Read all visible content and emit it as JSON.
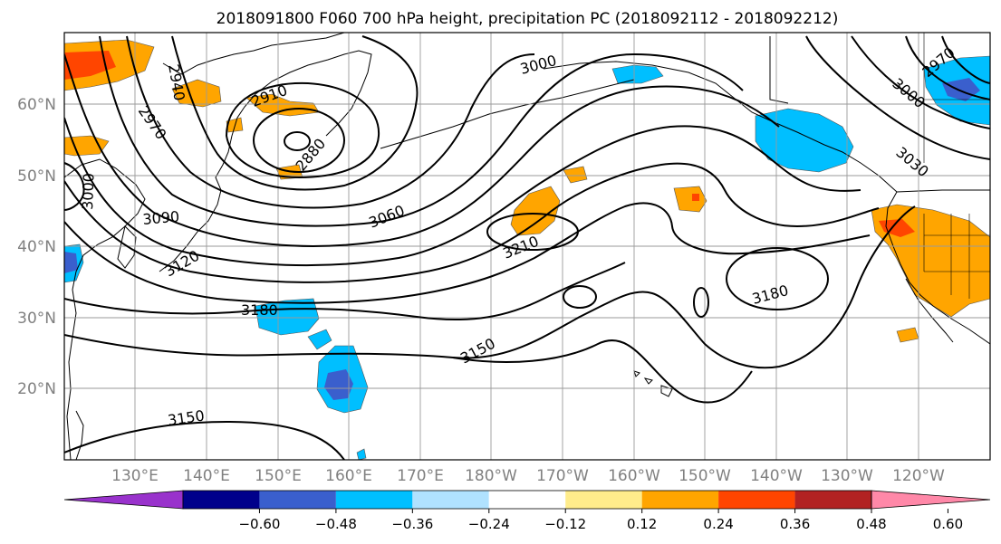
{
  "title": "2018091800 F060 700 hPa height, precipitation PC (2018092112 - 2018092212)",
  "lat_labels": [
    "60°N",
    "50°N",
    "40°N",
    "30°N",
    "20°N"
  ],
  "lon_labels": [
    "130°E",
    "140°E",
    "150°E",
    "160°E",
    "170°E",
    "180°W",
    "170°W",
    "160°W",
    "150°W",
    "140°W",
    "130°W",
    "120°W"
  ],
  "contour_labels": [
    "2940",
    "2970",
    "2910",
    "2880",
    "3000",
    "2970",
    "3000",
    "3030",
    "3000",
    "3090",
    "3060",
    "3120",
    "3210",
    "3180",
    "3180",
    "3150",
    "3150"
  ],
  "colorbar": {
    "colors": [
      "#9932cc",
      "#00008b",
      "#3a5fcd",
      "#00bfff",
      "#b0e2ff",
      "#ffffff",
      "#ffec8b",
      "#ffa500",
      "#ff4500",
      "#b22222",
      "#ff88a8"
    ],
    "tick_labels": [
      "−0.60",
      "−0.48",
      "−0.36",
      "−0.24",
      "−0.12",
      "0.12",
      "0.24",
      "0.36",
      "0.48",
      "0.60"
    ]
  }
}
